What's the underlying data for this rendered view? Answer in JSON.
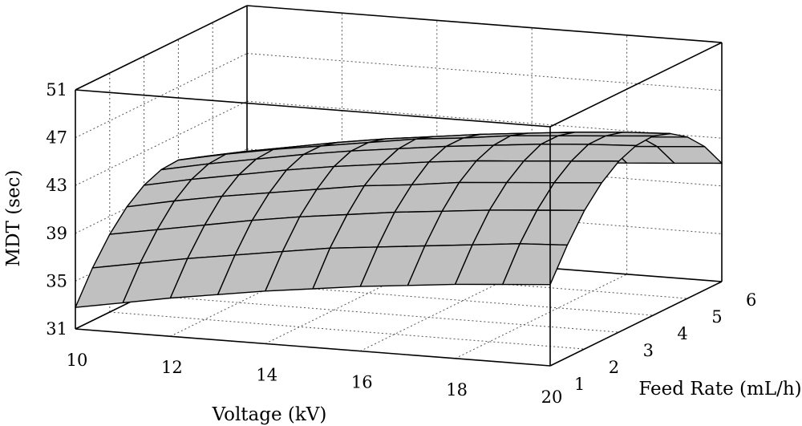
{
  "chart_data": {
    "type": "surface3d",
    "title": "",
    "xlabel": "Voltage (kV)",
    "ylabel": "Feed Rate (mL/h)",
    "zlabel": "MDT (sec)",
    "xlim": [
      10,
      20
    ],
    "ylim": [
      1,
      6
    ],
    "zlim": [
      31,
      51
    ],
    "x_ticks": [
      "10",
      "12",
      "14",
      "16",
      "18",
      "20"
    ],
    "y_ticks": [
      "1",
      "2",
      "3",
      "4",
      "5",
      "6"
    ],
    "z_ticks": [
      "31",
      "35",
      "39",
      "43",
      "47",
      "51"
    ],
    "grid": true,
    "surface_color": "#c0c0c0",
    "x": [
      10,
      11,
      12,
      13,
      14,
      15,
      16,
      17,
      18,
      19,
      20
    ],
    "y": [
      1,
      1.5,
      2,
      2.5,
      3,
      3.5,
      4,
      4.5,
      5,
      5.5,
      6
    ],
    "z": [
      [
        32.8,
        33.5,
        34.2,
        34.8,
        35.4,
        35.9,
        36.4,
        36.8,
        37.2,
        37.5,
        37.8
      ],
      [
        35.4,
        36.1,
        36.8,
        37.4,
        38.0,
        38.6,
        39.0,
        39.4,
        39.8,
        40.2,
        40.4
      ],
      [
        37.5,
        38.2,
        38.9,
        39.6,
        40.2,
        40.7,
        41.2,
        41.6,
        42.0,
        42.3,
        42.6
      ],
      [
        39.1,
        39.9,
        40.6,
        41.2,
        41.8,
        42.4,
        42.8,
        43.3,
        43.6,
        43.9,
        44.2
      ],
      [
        40.2,
        41.0,
        41.7,
        42.4,
        43.0,
        43.5,
        44.0,
        44.4,
        44.7,
        45.0,
        45.3
      ],
      [
        40.8,
        41.6,
        42.3,
        43.0,
        43.6,
        44.1,
        44.6,
        45.0,
        45.4,
        45.7,
        45.9
      ],
      [
        40.9,
        41.7,
        42.4,
        43.0,
        43.6,
        44.2,
        44.6,
        45.1,
        45.4,
        45.7,
        46.0
      ],
      [
        40.4,
        41.2,
        41.9,
        42.6,
        43.2,
        43.7,
        44.2,
        44.6,
        45.0,
        45.3,
        45.5
      ],
      [
        39.4,
        40.2,
        40.9,
        41.6,
        42.2,
        42.7,
        43.2,
        43.6,
        43.9,
        44.2,
        44.5
      ],
      [
        37.9,
        38.7,
        39.4,
        40.0,
        40.6,
        41.2,
        41.6,
        42.0,
        42.4,
        42.7,
        43.0
      ],
      [
        35.8,
        36.6,
        37.3,
        38.0,
        38.6,
        39.1,
        39.6,
        40.0,
        40.3,
        40.6,
        40.9
      ]
    ]
  }
}
